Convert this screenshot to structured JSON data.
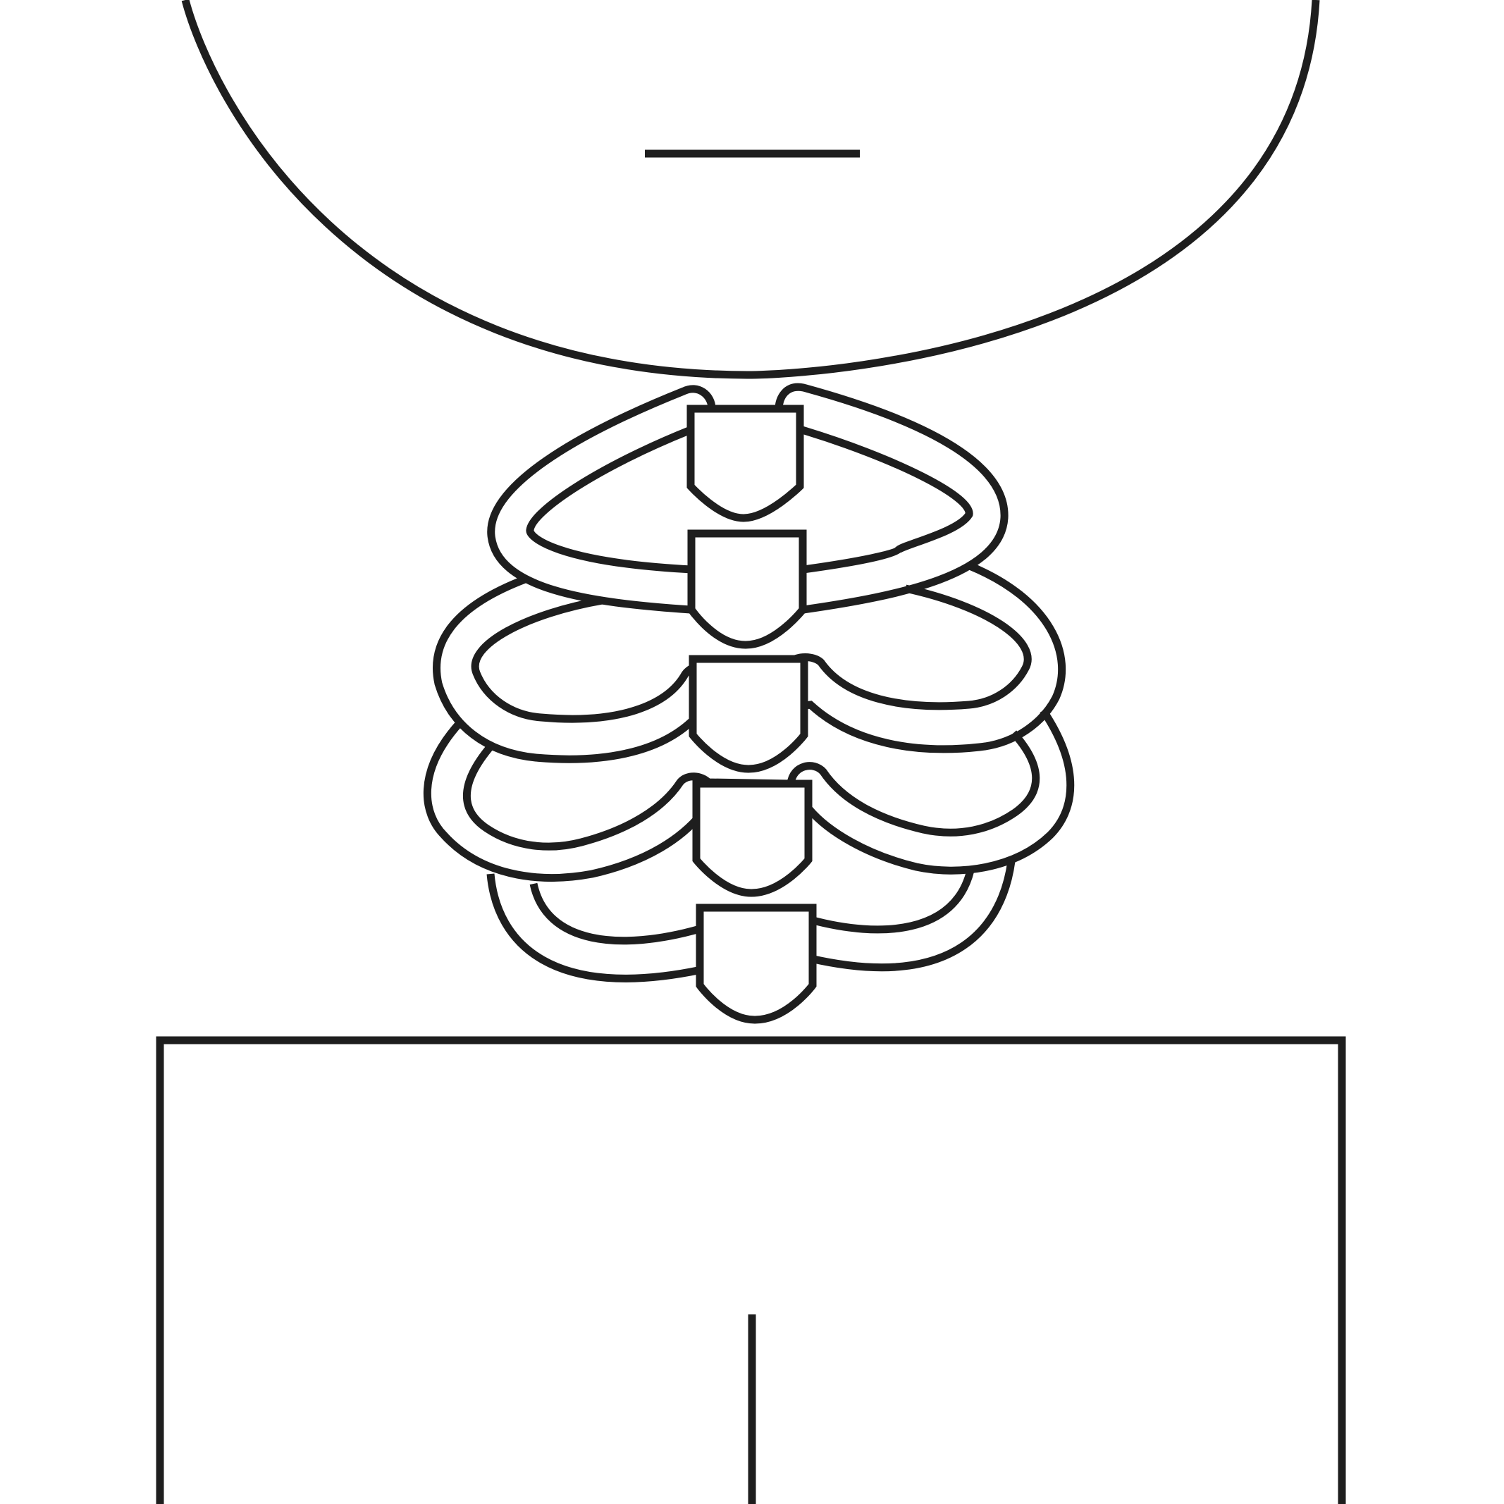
{
  "colors": {
    "background": "#ffffff",
    "stroke": "#1e1e1e",
    "fill": "#ffffff"
  },
  "figure": {
    "head": {},
    "mouth": {},
    "neck": {},
    "ribcage": {
      "plates": [
        {},
        {},
        {},
        {},
        {}
      ]
    },
    "body": {},
    "center_mark": {}
  }
}
